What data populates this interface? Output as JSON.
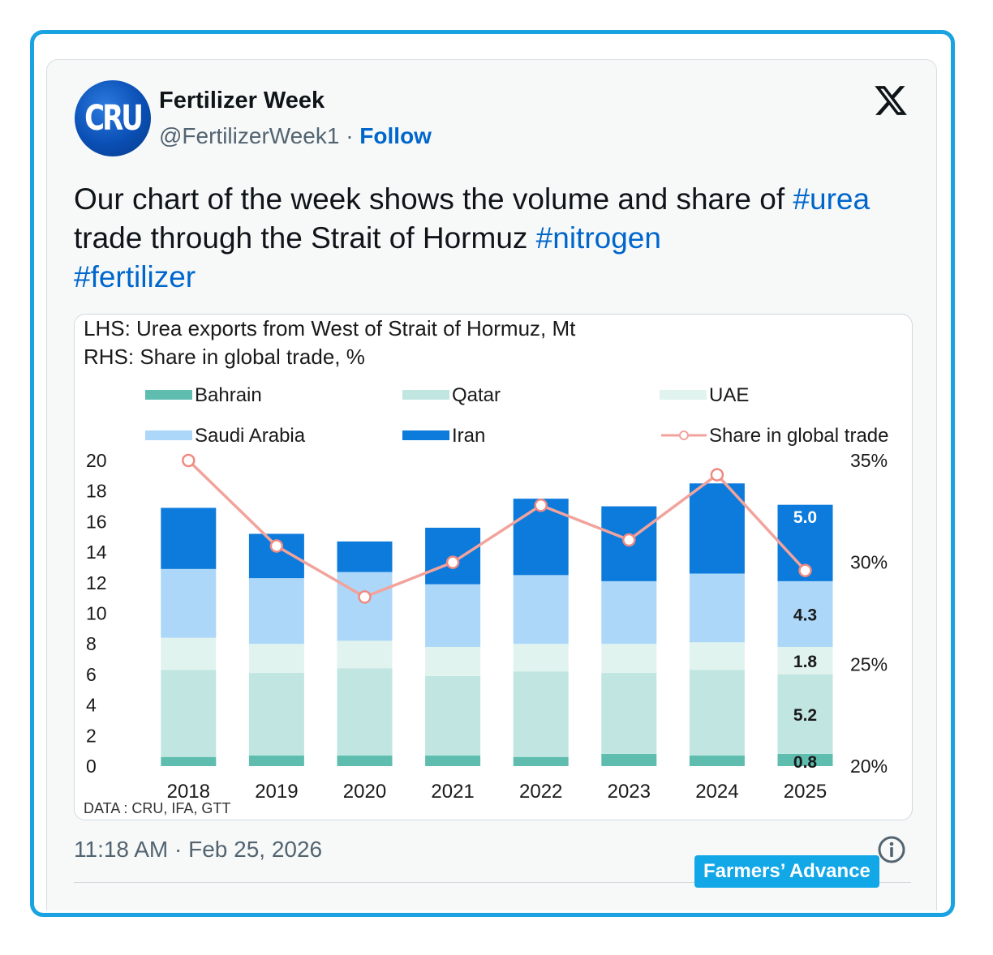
{
  "tweet": {
    "avatar_text": "CRU",
    "display_name": "Fertilizer Week",
    "handle": "@FertilizerWeek1",
    "separator": "·",
    "follow_label": "Follow",
    "text_1": "Our chart of the week shows the volume and share of ",
    "hashtag_1": "#urea",
    "text_2": " trade through the Strait of Hormuz ",
    "hashtag_2": "#nitrogen",
    "hashtag_3": "#fertilizer",
    "timestamp": "11:18 AM · Feb 25, 2026",
    "icons": {
      "platform": "x-logo-icon",
      "info": "info-icon"
    }
  },
  "watermark": {
    "label": "Farmers’ Advance"
  },
  "chart_data": {
    "type": "bar",
    "stacked": true,
    "title_lhs": "LHS: Urea exports from West of Strait of Hormuz, Mt",
    "title_rhs": "RHS: Share in global trade, %",
    "source": "DATA : CRU, IFA, GTT",
    "categories": [
      "2018",
      "2019",
      "2020",
      "2021",
      "2022",
      "2023",
      "2024",
      "2025"
    ],
    "series": [
      {
        "name": "Bahrain",
        "color": "#5fbdb0",
        "values": [
          0.6,
          0.7,
          0.7,
          0.7,
          0.6,
          0.8,
          0.7,
          0.8
        ]
      },
      {
        "name": "Qatar",
        "color": "#c1e6e1",
        "values": [
          5.7,
          5.4,
          5.7,
          5.2,
          5.6,
          5.3,
          5.6,
          5.2
        ]
      },
      {
        "name": "UAE",
        "color": "#e1f3ef",
        "values": [
          2.1,
          1.9,
          1.8,
          1.9,
          1.8,
          1.9,
          1.8,
          1.8
        ]
      },
      {
        "name": "Saudi Arabia",
        "color": "#acd7f9",
        "values": [
          4.5,
          4.3,
          4.5,
          4.1,
          4.5,
          4.1,
          4.5,
          4.3
        ]
      },
      {
        "name": "Iran",
        "color": "#0c7bdc",
        "values": [
          4.0,
          2.9,
          2.0,
          3.7,
          5.0,
          4.9,
          5.9,
          5.0
        ]
      }
    ],
    "line_series": {
      "name": "Share in global trade",
      "color": "#f2a39c",
      "axis": "right",
      "values": [
        35.0,
        30.8,
        28.3,
        30.0,
        32.8,
        31.1,
        34.3,
        29.6
      ]
    },
    "data_labels": [
      {
        "category": "2025",
        "series": "Iran",
        "text": "5.0"
      },
      {
        "category": "2025",
        "series": "Saudi Arabia",
        "text": "4.3"
      },
      {
        "category": "2025",
        "series": "UAE",
        "text": "1.8"
      },
      {
        "category": "2025",
        "series": "Qatar",
        "text": "5.2"
      },
      {
        "category": "2025",
        "series": "Bahrain",
        "text": "0.8"
      }
    ],
    "y_left": {
      "min": 0,
      "max": 20,
      "ticks": [
        "0",
        "2",
        "4",
        "6",
        "8",
        "10",
        "12",
        "14",
        "16",
        "18",
        "20"
      ]
    },
    "y_right": {
      "min": 20,
      "max": 35,
      "ticks": [
        "20%",
        "25%",
        "30%",
        "35%"
      ]
    },
    "legend_position": "top"
  }
}
